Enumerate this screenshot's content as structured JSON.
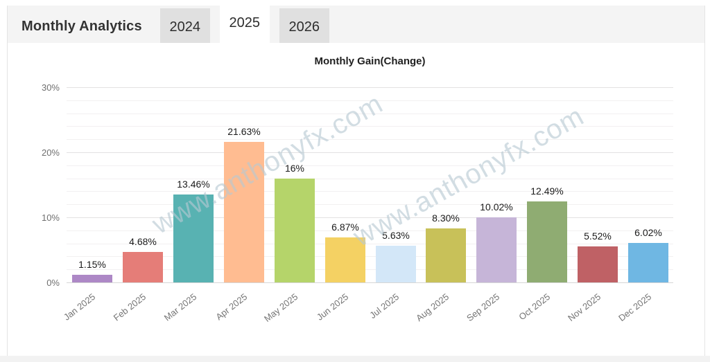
{
  "header": {
    "title": "Monthly Analytics",
    "tabs": [
      {
        "label": "2024",
        "active": false
      },
      {
        "label": "2025",
        "active": true
      },
      {
        "label": "2026",
        "active": false
      }
    ]
  },
  "watermark": {
    "text": "www.anthonyfx.com"
  },
  "colors": {
    "header_bg": "#f4f4f4",
    "tab_inactive_bg": "#e0e0e0",
    "tab_active_bg": "#ffffff",
    "axis_text": "#757575",
    "value_text": "#1a1a1a"
  },
  "chart_data": {
    "type": "bar",
    "title": "Monthly Gain(Change)",
    "categories": [
      "Jan 2025",
      "Feb 2025",
      "Mar 2025",
      "Apr 2025",
      "May 2025",
      "Jun 2025",
      "Jul 2025",
      "Aug 2025",
      "Sep 2025",
      "Oct 2025",
      "Nov 2025",
      "Dec 2025"
    ],
    "values": [
      1.15,
      4.68,
      13.46,
      21.63,
      16,
      6.87,
      5.63,
      8.3,
      10.02,
      12.49,
      5.52,
      6.02
    ],
    "labels": [
      "1.15%",
      "4.68%",
      "13.46%",
      "21.63%",
      "16%",
      "6.87%",
      "5.63%",
      "8.30%",
      "10.02%",
      "12.49%",
      "5.52%",
      "6.02%"
    ],
    "colors": [
      "#ad88c6",
      "#e57d78",
      "#58b2b2",
      "#ffbc91",
      "#b5d46a",
      "#f4d163",
      "#d3e7f8",
      "#c8c159",
      "#c6b5d8",
      "#8fac72",
      "#bf6165",
      "#6fb7e3"
    ],
    "xlabel": "",
    "ylabel": "",
    "ylim": [
      0,
      31
    ],
    "y_ticks": [
      {
        "pct": 0,
        "label": "0%"
      },
      {
        "pct": 10,
        "label": "10%"
      },
      {
        "pct": 20,
        "label": "20%"
      },
      {
        "pct": 30,
        "label": "30%"
      }
    ],
    "grid": "major every 10%, minor every 2%",
    "legend": "none"
  }
}
